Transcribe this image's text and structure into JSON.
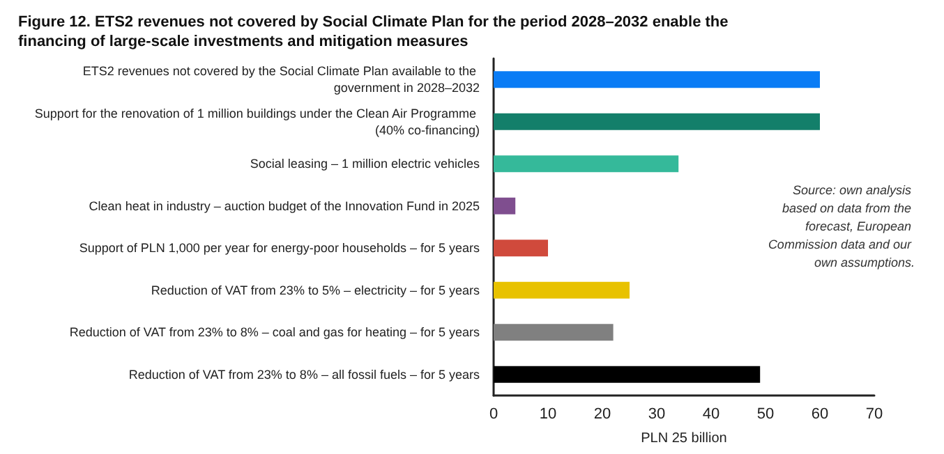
{
  "chart_data": {
    "type": "bar",
    "orientation": "horizontal",
    "title": "Figure 12. ETS2 revenues not covered by Social Climate Plan for the period 2028–2032 enable the financing of large-scale investments and mitigation measures",
    "categories": [
      "ETS2 revenues not covered by the Social Climate Plan available to the government in 2028–2032",
      "Support for the renovation of 1 million buildings under the Clean Air Programme (40% co-financing)",
      "Social leasing – 1 million electric vehicles",
      "Clean heat in industry – auction budget of the Innovation Fund in 2025",
      "Support of PLN 1,000 per year for energy-poor households – for 5 years",
      "Reduction of VAT from 23% to 5% – electricity – for 5 years",
      "Reduction of VAT from 23% to 8% – coal and gas for heating – for 5 years",
      "Reduction of VAT from 23% to 8% – all fossil fuels – for 5 years"
    ],
    "values": [
      60,
      60,
      34,
      4,
      10,
      25,
      22,
      49
    ],
    "colors": [
      "#0a7cf5",
      "#137f6a",
      "#35b99a",
      "#7f4e8f",
      "#d04a3c",
      "#e8c200",
      "#808080",
      "#000000"
    ],
    "xlabel": "PLN 25 billion",
    "xlim": [
      0,
      70
    ],
    "xticks": [
      0,
      10,
      20,
      30,
      40,
      50,
      60,
      70
    ],
    "annotations": [
      "Source: own analysis based on data from the forecast, European Commission data and our own assumptions."
    ],
    "grid": false
  }
}
